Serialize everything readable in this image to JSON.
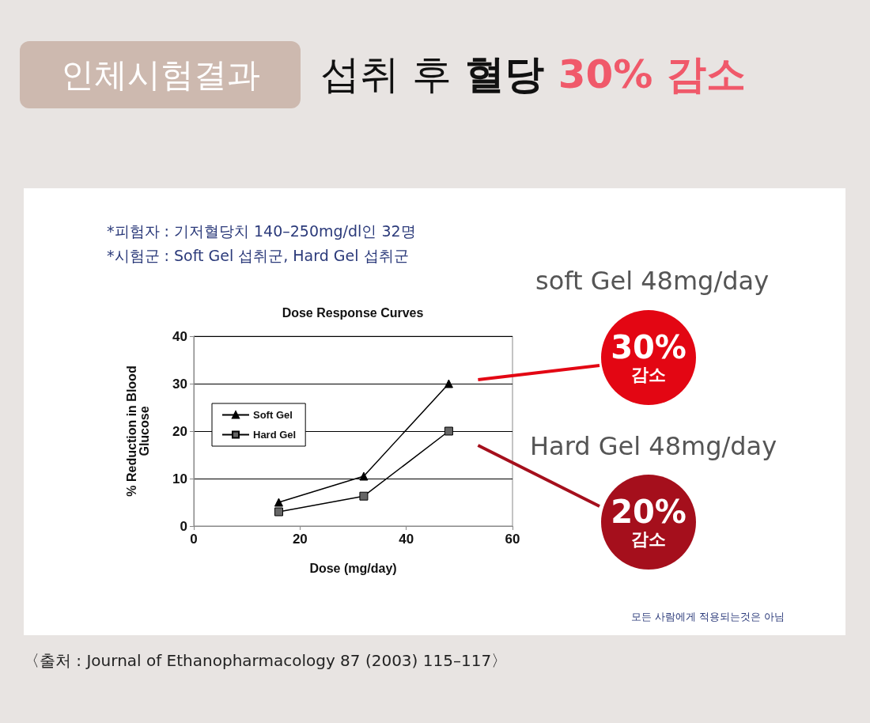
{
  "chart_data": {
    "type": "line",
    "title": "섭취 후 혈당 30% 감소",
    "subtitle": "인체시험결과",
    "xlabel": "Dose (mg/day)",
    "ylabel": "% Reduction in Blood\nGlucose",
    "annotations": [
      "*피험자 : 기저혈당치 140–250mg/dl인 32명",
      "*시험군 : Soft Gel 섭취군, Hard Gel 섭취군",
      "soft Gel 48mg/day",
      "30% 감소",
      "Hard Gel 48mg/day",
      "20% 감소",
      "모든 사람에게 적용되는것은 아님",
      "〈출처 : Journal of Ethanopharmacology 87 (2003) 115–117〉",
      "Dose Response Curves"
    ],
    "x": [
      16,
      32,
      48
    ],
    "series": [
      {
        "name": "Soft Gel",
        "color": "#000000",
        "marker": "triangle",
        "values": [
          5,
          10.5,
          30
        ]
      },
      {
        "name": "Hard Gel",
        "color": "#000000",
        "marker": "square",
        "values": [
          3,
          6.3,
          20
        ]
      }
    ],
    "xlim": [
      0,
      60
    ],
    "xticks": [
      0,
      20,
      40,
      60
    ],
    "ylim": [
      0,
      40
    ],
    "yticks": [
      0,
      10,
      20,
      30,
      40
    ],
    "grid": "y",
    "legend": "left",
    "line_style": "solid"
  }
}
